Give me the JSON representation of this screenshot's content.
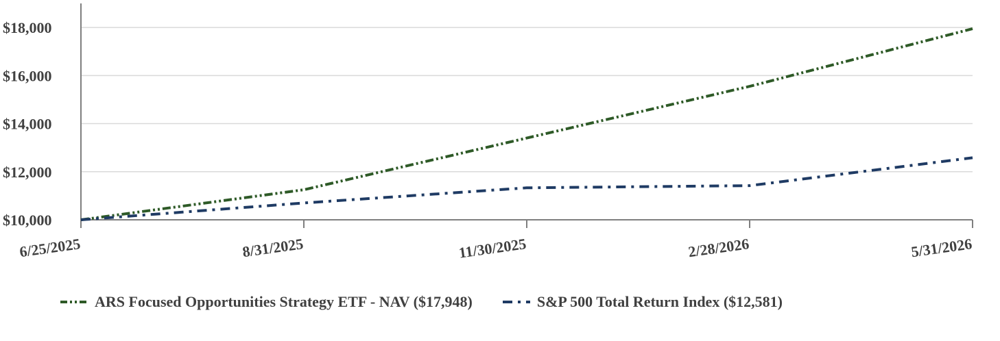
{
  "chart_data": {
    "type": "line",
    "title": "",
    "xlabel": "",
    "ylabel": "",
    "x": [
      "6/25/2025",
      "8/31/2025",
      "11/30/2025",
      "2/28/2026",
      "5/31/2026"
    ],
    "ylim": [
      10000,
      19000
    ],
    "yticks": [
      "$10,000",
      "$12,000",
      "$14,000",
      "$16,000",
      "$18,000"
    ],
    "ytick_values": [
      10000,
      12000,
      14000,
      16000,
      18000
    ],
    "grid": "horizontal",
    "legend_position": "bottom",
    "series": [
      {
        "name": "ARS Focused Opportunities Strategy ETF - NAV ($17,948)",
        "color": "#2e5a27",
        "dash": "dash-dot-dot",
        "values": [
          10000,
          11250,
          13400,
          15550,
          17948
        ]
      },
      {
        "name": "S&P 500 Total Return Index ($12,581)",
        "color": "#1f3b64",
        "dash": "dash-dot",
        "values": [
          10000,
          10700,
          11330,
          11420,
          12581
        ]
      }
    ]
  }
}
